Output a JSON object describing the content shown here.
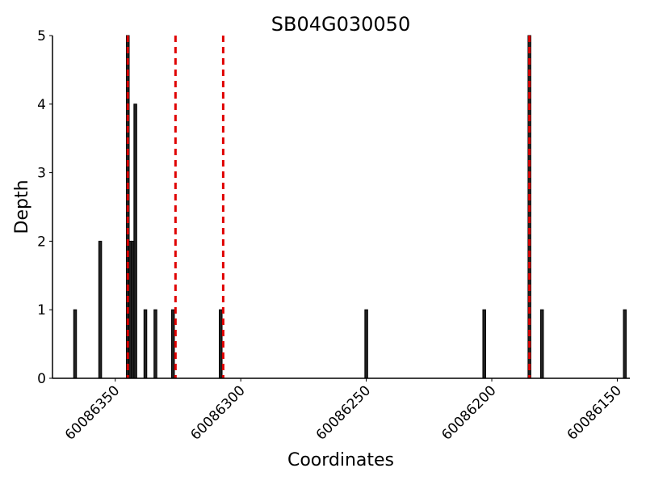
{
  "chart_data": {
    "type": "bar",
    "title": "SB04G030050",
    "xlabel": "Coordinates",
    "ylabel": "Depth",
    "x_reversed": true,
    "xlim": [
      60086375,
      60086145
    ],
    "ylim": [
      0,
      5
    ],
    "x_ticks": [
      60086350,
      60086300,
      60086250,
      60086200,
      60086150
    ],
    "x_tick_labels": [
      "60086350",
      "60086300",
      "60086250",
      "60086200",
      "60086150"
    ],
    "y_ticks": [
      0,
      1,
      2,
      3,
      4,
      5
    ],
    "y_tick_labels": [
      "0",
      "1",
      "2",
      "3",
      "4",
      "5"
    ],
    "bars": [
      {
        "x": 60086366,
        "value": 1
      },
      {
        "x": 60086356,
        "value": 2
      },
      {
        "x": 60086345,
        "value": 5
      },
      {
        "x": 60086344,
        "value": 2
      },
      {
        "x": 60086343,
        "value": 2
      },
      {
        "x": 60086342,
        "value": 4
      },
      {
        "x": 60086338,
        "value": 1
      },
      {
        "x": 60086334,
        "value": 1
      },
      {
        "x": 60086327,
        "value": 1
      },
      {
        "x": 60086308,
        "value": 1
      },
      {
        "x": 60086250,
        "value": 1
      },
      {
        "x": 60086203,
        "value": 1
      },
      {
        "x": 60086185,
        "value": 5
      },
      {
        "x": 60086180,
        "value": 1
      },
      {
        "x": 60086147,
        "value": 1
      }
    ],
    "vlines": [
      60086345,
      60086326,
      60086307,
      60086185
    ],
    "grid": false,
    "colors": {
      "bar_fill": "#222222",
      "bar_edge": "#000000",
      "vline": "#e00000"
    }
  }
}
